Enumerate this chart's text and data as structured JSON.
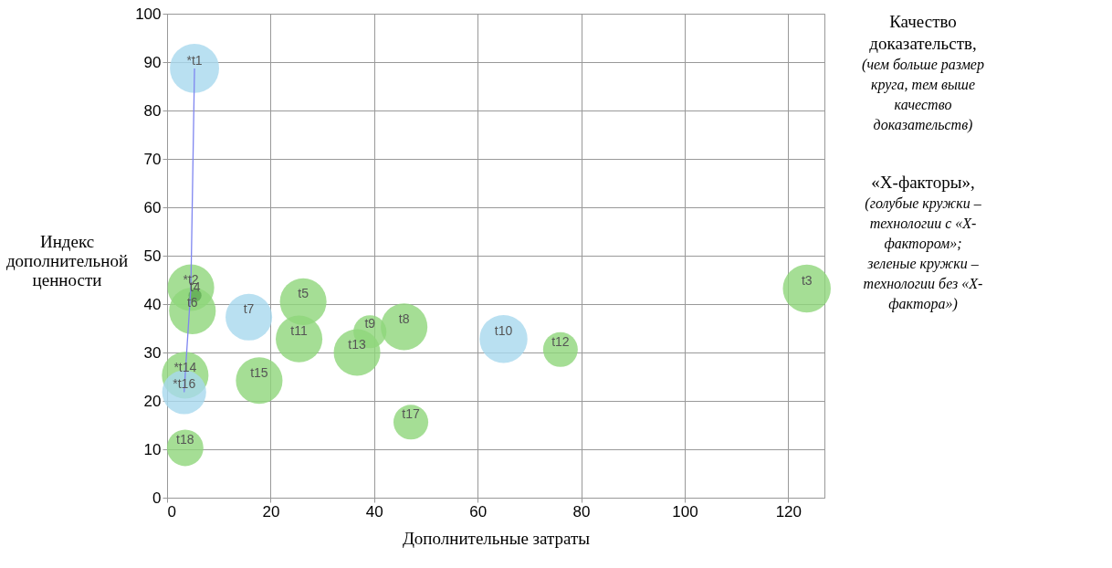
{
  "chart_data": {
    "type": "bubble",
    "xlabel": "Дополнительные затраты",
    "ylabel": "Индекс\nдополнительной\nценности",
    "xlim": [
      0,
      127
    ],
    "ylim": [
      0,
      100
    ],
    "xticks": [
      0,
      20,
      40,
      60,
      80,
      100,
      120
    ],
    "yticks": [
      0,
      10,
      20,
      30,
      40,
      50,
      60,
      70,
      80,
      90,
      100
    ],
    "grid": true,
    "legend": false,
    "relative": false,
    "series": [
      {
        "color": "#8ed67a",
        "x": [
          4.6,
          4.9,
          26.3,
          25.5,
          39.2,
          36.7,
          45.8,
          3.5,
          17.8,
          47.1,
          3.5,
          76.0,
          123.6
        ],
        "values": [
          43.4,
          38.6,
          40.5,
          32.8,
          34.3,
          30.0,
          35.3,
          25.3,
          24.2,
          15.6,
          10.3,
          30.6,
          43.2
        ],
        "sizes": [
          0.9,
          0.9,
          0.9,
          0.9,
          0.45,
          0.9,
          0.9,
          0.9,
          0.9,
          0.5,
          0.55,
          0.5,
          0.95
        ]
      },
      {
        "color": "#a8d8ee",
        "x": [
          5.3,
          15.8,
          3.3,
          65.0
        ],
        "values": [
          88.7,
          37.3,
          21.8,
          32.8
        ],
        "sizes": [
          1,
          0.9,
          0.8,
          0.95
        ]
      },
      {
        "color": "#5faa52",
        "x": [
          5.4
        ],
        "values": [
          41.8
        ],
        "sizes": [
          0.07
        ]
      },
      {
        "type": "line",
        "color": "#7f86f0",
        "x": [
          5.3,
          4.6,
          3.5,
          3.3
        ],
        "values": [
          88.7,
          43.4,
          25.3,
          21.8
        ]
      }
    ],
    "annotations": [
      {
        "text": "*t1",
        "x": 5.3,
        "y": 88.7
      },
      {
        "text": "*t2",
        "x": 4.6,
        "y": 43.4
      },
      {
        "text": "t3",
        "x": 123.6,
        "y": 43.2
      },
      {
        "text": "t4",
        "x": 5.4,
        "y": 41.8
      },
      {
        "text": "t5",
        "x": 26.3,
        "y": 40.5
      },
      {
        "text": "t6",
        "x": 4.9,
        "y": 38.6
      },
      {
        "text": "t7",
        "x": 15.8,
        "y": 37.3
      },
      {
        "text": "t8",
        "x": 45.8,
        "y": 35.3
      },
      {
        "text": "t9",
        "x": 39.2,
        "y": 34.3
      },
      {
        "text": "t10",
        "x": 65.0,
        "y": 32.8
      },
      {
        "text": "t11",
        "x": 25.5,
        "y": 32.8
      },
      {
        "text": "t12",
        "x": 76.0,
        "y": 30.6
      },
      {
        "text": "t13",
        "x": 36.7,
        "y": 30.0
      },
      {
        "text": "*t14",
        "x": 3.5,
        "y": 25.3
      },
      {
        "text": "t15",
        "x": 17.8,
        "y": 24.2
      },
      {
        "text": "*t16",
        "x": 3.3,
        "y": 21.8
      },
      {
        "text": "t17",
        "x": 47.1,
        "y": 15.6
      },
      {
        "text": "t18",
        "x": 3.5,
        "y": 10.3
      },
      "Качество\nдоказательств,",
      "(чем больше размер\nкруга, тем выше\nкачество\nдоказательств)",
      "«X-факторы»,",
      "(голубые кружки –\nтехнологии с «X-\nфактором»;\nзеленые кружки –\nтехнологии без «X-\nфактора»)"
    ]
  }
}
